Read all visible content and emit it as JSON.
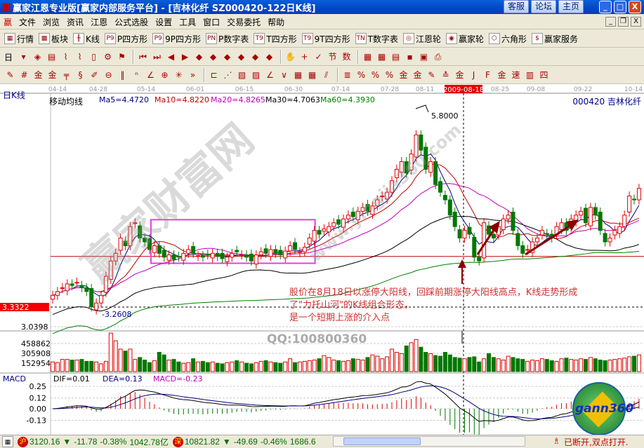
{
  "window": {
    "title": "赢家江恩专业版[赢家内部服务平台] - [吉林化纤   SZ000420-122日K线]",
    "logo": "赢",
    "buttons": [
      "客服",
      "论坛",
      "主页"
    ],
    "controls": [
      "_",
      "□",
      "X"
    ]
  },
  "menu": {
    "items": [
      "文件",
      "浏览",
      "资讯",
      "江恩",
      "公式选股",
      "设置",
      "工具",
      "窗口",
      "交易委托",
      "帮助"
    ],
    "mdi_controls": [
      "_",
      "❐",
      "X"
    ]
  },
  "toolbar1": [
    {
      "icon": "quote-table-icon",
      "glyph": "▦",
      "label": "行情"
    },
    {
      "icon": "sector-icon",
      "glyph": "▩",
      "label": "板块"
    },
    {
      "icon": "kline-icon",
      "glyph": "╫",
      "label": "K线"
    },
    {
      "icon": "p-square-icon",
      "glyph": "P9",
      "label": "P四方形"
    },
    {
      "icon": "9p-square-icon",
      "glyph": "P9",
      "label": "9P四方形"
    },
    {
      "icon": "p-number-table-icon",
      "glyph": "PN",
      "label": "P数字表"
    },
    {
      "icon": "t-square-icon",
      "glyph": "T9",
      "label": "T四方形"
    },
    {
      "icon": "9t-square-icon",
      "glyph": "T9",
      "label": "9T四方形"
    },
    {
      "icon": "t-number-table-icon",
      "glyph": "TN",
      "label": "T数字表"
    },
    {
      "icon": "gann-wheel-icon",
      "glyph": "◎",
      "label": "江恩轮"
    },
    {
      "icon": "winner-wheel-icon",
      "glyph": "◉",
      "label": "赢家轮"
    },
    {
      "icon": "hexagon-icon",
      "glyph": "⬡",
      "label": "六角形"
    },
    {
      "icon": "dollar-icon",
      "glyph": "$",
      "label": "赢家服务"
    }
  ],
  "toolbar2": {
    "period": "日",
    "icons": [
      [
        "period-dropdown-icon",
        "▾"
      ],
      [
        "chart-type-icon",
        "◈"
      ],
      [
        "note-icon",
        "▤"
      ],
      [
        "kline3-icon",
        "⌇"
      ],
      [
        "kline9-icon",
        "⌇"
      ],
      [
        "candle-dropdown-icon",
        "▯"
      ],
      [
        "indicator-icon",
        "⚙"
      ],
      [
        "flag-icon",
        "⚑"
      ],
      [
        "first-icon",
        "⏮"
      ],
      [
        "last-icon",
        "⏭"
      ],
      [
        "prev-icon",
        "◀"
      ],
      [
        "next-icon",
        "▶"
      ],
      [
        "diamond-left-icon",
        "◆"
      ],
      [
        "diamond-right-icon",
        "◆"
      ],
      [
        "diamond-h-icon",
        "◆"
      ],
      [
        "diamond-x-icon",
        "◆"
      ],
      [
        "diamond-v-icon",
        "◆"
      ],
      [
        "diamond-up-icon",
        "◆"
      ],
      [
        "hand-icon",
        "✋"
      ],
      [
        "crosshair-icon",
        "+"
      ],
      [
        "draw-icon",
        "✓"
      ],
      [
        "calendar-mark-icon",
        "节"
      ],
      [
        "number-icon",
        "数"
      ],
      [
        "calendar-icon",
        "▦"
      ],
      [
        "calculator-icon",
        "▦"
      ],
      [
        "document-icon",
        "▤"
      ],
      [
        "save-icon",
        "▪"
      ],
      [
        "print-preview-icon",
        "▣"
      ],
      [
        "print-icon",
        "⎙"
      ]
    ]
  },
  "toolbar3": {
    "icons": [
      [
        "pen-icon",
        "✎"
      ],
      [
        "grid-icon",
        "#"
      ],
      [
        "gold-icon",
        "金"
      ],
      [
        "gold2-icon",
        "金"
      ],
      [
        "comb-icon",
        "╤"
      ],
      [
        "spiral-icon",
        "§"
      ],
      [
        "pencil-icon",
        "✐"
      ],
      [
        "circle-icon",
        "⊖"
      ],
      [
        "bars-icon",
        "‖"
      ],
      [
        "n2-icon",
        "ⁿ"
      ],
      [
        "angle-icon",
        "∠"
      ],
      [
        "target-icon",
        "⊕"
      ],
      [
        "star-icon",
        "✳"
      ],
      [
        "more-icon",
        "»"
      ],
      [
        "frame-icon",
        "⊏"
      ],
      [
        "fan-icon",
        "⋰"
      ],
      [
        "box-fan-icon",
        "▧"
      ],
      [
        "box-fan2-icon",
        "▨"
      ],
      [
        "lines-icon",
        "∠"
      ],
      [
        "wave-icon",
        "∨"
      ],
      [
        "grid2-icon",
        "▦"
      ],
      [
        "grid3-icon",
        "▦"
      ],
      [
        "parallel-icon",
        "⫽"
      ],
      [
        "align-icon",
        "≣"
      ],
      [
        "percent-fan-icon",
        "%"
      ],
      [
        "percent-icon",
        "%"
      ],
      [
        "percent-lines-icon",
        "%"
      ],
      [
        "gold-circle-icon",
        "金"
      ],
      [
        "gold-lines-icon",
        "金"
      ],
      [
        "pen2-icon",
        "✎"
      ],
      [
        "up-lines-icon",
        "≛"
      ],
      [
        "gold-fan-icon",
        "金"
      ],
      [
        "j-fan-icon",
        "J"
      ],
      [
        "f-fan-icon",
        "F"
      ],
      [
        "gold-fan2-icon",
        "金"
      ],
      [
        "speed-icon",
        "速"
      ],
      [
        "box-icon",
        "▥"
      ],
      [
        "four-icon",
        "四"
      ]
    ]
  },
  "chart": {
    "period_label": "日K线",
    "ma_title": "移动均线",
    "ma_values": {
      "ma5": "Ma5=4.4720",
      "ma10": "Ma10=4.8220",
      "ma20": "Ma20=4.8265",
      "ma30": "Ma30=4.7063",
      "ma60": "Ma60=4.3930"
    },
    "stock": "000420  吉林化纤",
    "dates": [
      "04-14",
      "04-28",
      "05-14",
      "06-01",
      "06-15",
      "06-30",
      "07-14",
      "07-28",
      "08-11",
      "08-25",
      "09-08",
      "09-22",
      "10-14"
    ],
    "cursor_date": "2009-08-18",
    "price_labels": {
      "current": "3.3322",
      "low_axis": "3.0398",
      "high_mark": "5.8000",
      "low_mark": "3.2608"
    },
    "volume_labels": [
      "458862",
      "305908",
      "152954"
    ],
    "macd": {
      "title": "MACD",
      "dif": "DIF=0.01",
      "dea": "DEA=0.13",
      "macd": "MACD=-0.23",
      "ticks": [
        "0.25",
        "0.12",
        "0.00",
        "-0.13"
      ]
    },
    "annotation": [
      "股价在8月18日以涨停大阳线，回踩前期涨停大阳线高点，K线走势形成",
      "了\"力托山河\"的K线组合形态，",
      "是一个短期上涨的介入点"
    ],
    "watermark": {
      "main": "赢家财富网",
      "url": "www.yingjia360.com",
      "qq": "QQ:100800360",
      "logo": "gann360"
    },
    "colors": {
      "up": "#e00000",
      "down": "#007800",
      "ma5": "#000080",
      "ma10": "#c00000",
      "ma20": "#c000c0",
      "ma30": "#000000",
      "ma60": "#008000",
      "box": "#e040e0",
      "support": "#c00000",
      "arrow": "#8b0000"
    }
  },
  "chart_data": {
    "type": "candlestick",
    "close": [
      3.45,
      3.5,
      3.55,
      3.6,
      3.58,
      3.62,
      3.55,
      3.5,
      3.3,
      3.35,
      3.45,
      3.7,
      3.9,
      4.0,
      4.2,
      4.1,
      4.35,
      4.4,
      4.2,
      4.15,
      4.05,
      4.1,
      4.0,
      3.95,
      3.98,
      3.92,
      3.95,
      4.0,
      4.05,
      4.0,
      3.97,
      3.95,
      3.98,
      4.0,
      3.96,
      3.93,
      3.95,
      4.0,
      4.02,
      3.98,
      3.95,
      3.9,
      3.98,
      4.02,
      4.0,
      4.05,
      4.0,
      3.98,
      4.03,
      4.1,
      4.05,
      4.02,
      4.08,
      4.2,
      4.3,
      4.25,
      4.32,
      4.35,
      4.4,
      4.38,
      4.45,
      4.5,
      4.48,
      4.55,
      4.6,
      4.55,
      4.62,
      4.7,
      4.75,
      4.8,
      4.95,
      5.1,
      5.2,
      5.05,
      5.3,
      5.55,
      5.35,
      5.1,
      5.2,
      4.9,
      4.8,
      4.7,
      4.5,
      4.35,
      4.2,
      4.3,
      4.25,
      3.95,
      3.9,
      4.4,
      4.25,
      4.2,
      4.35,
      4.45,
      4.5,
      4.3,
      4.1,
      4.0,
      4.05,
      4.15,
      4.2,
      4.3,
      4.25,
      4.2,
      4.35,
      4.4,
      4.3,
      4.45,
      4.5,
      4.55,
      4.4,
      4.6,
      4.5,
      4.3,
      4.15,
      4.2,
      4.3,
      4.35,
      4.5,
      4.75,
      4.7,
      4.85
    ],
    "volume": [
      150000,
      140000,
      190000,
      190000,
      180000,
      180000,
      190000,
      160000,
      160000,
      150000,
      120000,
      160000,
      600000,
      480000,
      350000,
      320000,
      350000,
      190000,
      220000,
      180000,
      140000,
      170000,
      300000,
      260000,
      180000,
      190000,
      150000,
      130000,
      140000,
      200000,
      150000,
      160000,
      140000,
      150000,
      130000,
      120000,
      140000,
      150000,
      170000,
      150000,
      130000,
      120000,
      140000,
      160000,
      170000,
      150000,
      140000,
      130000,
      150000,
      200000,
      140000,
      150000,
      160000,
      170000,
      180000,
      200000,
      250000,
      220000,
      180000,
      170000,
      160000,
      170000,
      200000,
      190000,
      180000,
      220000,
      260000,
      240000,
      200000,
      230000,
      350000,
      300000,
      280000,
      400000,
      450000,
      500000,
      380000,
      300000,
      280000,
      250000,
      240000,
      300000,
      260000,
      220000,
      210000,
      200000,
      220000,
      230000,
      150000,
      200000,
      280000,
      220000,
      200000,
      180000,
      240000,
      220000,
      200000,
      190000,
      160000,
      180000,
      170000,
      200000,
      190000,
      170000,
      160000,
      200000,
      210000,
      190000,
      180000,
      200000,
      190000,
      220000,
      200000,
      180000,
      170000,
      180000,
      190000,
      200000,
      210000,
      230000,
      240000,
      260000
    ],
    "price_range": [
      3.0398,
      5.8
    ],
    "support_level": 3.96,
    "consolidation_box": {
      "from_index": 21,
      "to_index": 54,
      "low": 3.87,
      "high": 4.44
    }
  },
  "status": {
    "sh_label": "沪",
    "sh": "3120.16",
    "sh_arrow": "▼",
    "sh_chg": "-11.78",
    "sh_pct": "-0.38%",
    "sh_amt": "1042.78亿",
    "sz_label": "深",
    "sz": "10821.82",
    "sz_arrow": "▼",
    "sz_chg": "-49.69",
    "sz_pct": "-0.46%",
    "sz_amt": "1686.6",
    "conn": "已断开,双点打开."
  }
}
